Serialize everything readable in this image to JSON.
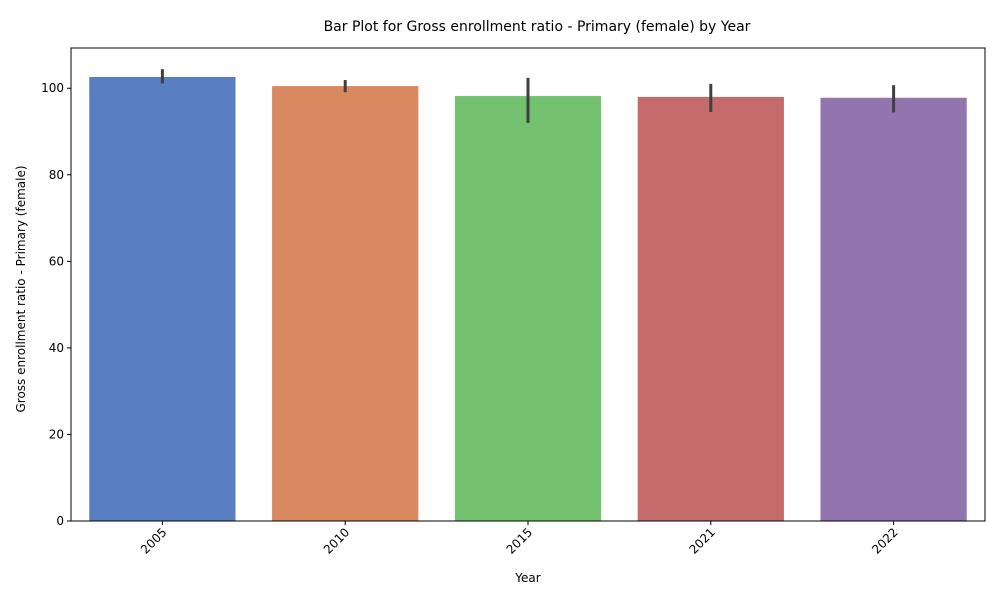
{
  "chart_data": {
    "type": "bar",
    "title": "Bar Plot for Gross enrollment ratio - Primary (female) by Year",
    "xlabel": "Year",
    "ylabel": "Gross enrollment ratio - Primary (female)",
    "categories": [
      "2005",
      "2010",
      "2015",
      "2021",
      "2022"
    ],
    "values": [
      102.6,
      100.5,
      98.2,
      98.0,
      97.8
    ],
    "error_low": [
      101.1,
      99.1,
      92.0,
      94.5,
      94.4
    ],
    "error_high": [
      104.4,
      101.9,
      102.4,
      101.0,
      100.7
    ],
    "colors": [
      "#5a7ec2",
      "#d9895f",
      "#74c26f",
      "#c56b6b",
      "#9275ae"
    ],
    "ylim": [
      0,
      109.3
    ],
    "yticks": [
      0,
      20,
      40,
      60,
      80,
      100
    ],
    "grid": false,
    "legend": "none"
  }
}
